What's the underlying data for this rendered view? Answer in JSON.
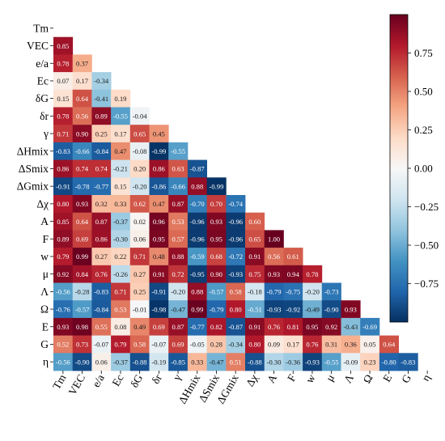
{
  "chart_data": {
    "type": "heatmap",
    "title": "",
    "variables": [
      "Tm",
      "VEC",
      "e/a",
      "Ec",
      "δG",
      "δr",
      "γ",
      "ΔHmix",
      "ΔSmix",
      "ΔGmix",
      "Δχ",
      "A",
      "F",
      "w",
      "μ",
      "Λ",
      "Ω",
      "E",
      "G",
      "η"
    ],
    "matrix": [
      [],
      [
        0.85
      ],
      [
        0.78,
        0.37
      ],
      [
        0.07,
        0.17,
        -0.34
      ],
      [
        0.15,
        0.64,
        -0.41,
        0.19
      ],
      [
        0.78,
        0.56,
        0.89,
        -0.55,
        -0.04
      ],
      [
        0.71,
        0.9,
        0.25,
        0.17,
        0.65,
        0.45
      ],
      [
        -0.83,
        -0.66,
        -0.84,
        0.47,
        -0.08,
        -0.99,
        -0.55
      ],
      [
        0.86,
        0.74,
        0.74,
        -0.21,
        0.2,
        0.86,
        0.63,
        -0.87
      ],
      [
        -0.91,
        -0.78,
        -0.77,
        0.15,
        -0.2,
        -0.86,
        -0.66,
        0.88,
        -0.99
      ],
      [
        0.8,
        0.93,
        0.32,
        0.33,
        0.62,
        0.47,
        0.87,
        -0.7,
        0.7,
        -0.74
      ],
      [
        0.85,
        0.64,
        0.87,
        -0.37,
        0.02,
        0.96,
        0.53,
        -0.96,
        0.93,
        -0.96,
        0.6
      ],
      [
        0.89,
        0.69,
        0.86,
        -0.3,
        0.06,
        0.95,
        0.57,
        -0.96,
        0.95,
        -0.96,
        0.65,
        1.0
      ],
      [
        0.79,
        0.99,
        0.27,
        0.22,
        0.71,
        0.48,
        0.88,
        -0.59,
        0.68,
        -0.72,
        0.91,
        0.56,
        0.61
      ],
      [
        0.92,
        0.84,
        0.76,
        -0.26,
        0.27,
        0.91,
        0.72,
        -0.95,
        0.9,
        -0.93,
        0.75,
        0.93,
        0.94,
        0.78
      ],
      [
        -0.56,
        -0.28,
        -0.83,
        0.71,
        0.25,
        -0.91,
        -0.2,
        0.88,
        -0.57,
        0.58,
        -0.18,
        -0.79,
        -0.75,
        -0.2,
        -0.73
      ],
      [
        -0.76,
        -0.57,
        -0.84,
        0.53,
        -0.01,
        -0.98,
        -0.47,
        0.99,
        -0.79,
        0.8,
        -0.51,
        -0.93,
        -0.92,
        -0.49,
        -0.9,
        0.93
      ],
      [
        0.93,
        0.98,
        0.55,
        0.08,
        0.49,
        0.69,
        0.87,
        -0.77,
        0.82,
        -0.87,
        0.91,
        0.76,
        0.81,
        0.95,
        0.92,
        -0.43,
        -0.69
      ],
      [
        0.52,
        0.73,
        -0.07,
        0.79,
        0.58,
        -0.07,
        0.69,
        -0.05,
        0.28,
        -0.34,
        0.8,
        0.09,
        0.17,
        0.76,
        0.31,
        0.36,
        0.05,
        0.64
      ],
      [
        -0.56,
        -0.9,
        0.06,
        -0.37,
        -0.88,
        -0.19,
        -0.85,
        0.33,
        -0.47,
        0.51,
        -0.88,
        -0.3,
        -0.36,
        -0.93,
        -0.55,
        -0.09,
        0.23,
        -0.8,
        -0.83
      ]
    ],
    "colorbar": {
      "range": [
        -1.0,
        1.0
      ],
      "ticks": [
        0.75,
        0.5,
        0.25,
        0.0,
        -0.25,
        -0.5,
        -0.75
      ],
      "tick_labels": [
        "0.75",
        "0.50",
        "0.25",
        "0.00",
        "−0.25",
        "−0.50",
        "−0.75"
      ],
      "colormap": "RdBu_r",
      "colors": {
        "negative_extreme": "#053061",
        "negative": "#2166ac",
        "negative_mid": "#4393c3",
        "negative_light": "#92c5de",
        "negative_pale": "#d1e5f0",
        "neutral": "#f7f7f7",
        "positive_pale": "#fddbc7",
        "positive_light": "#f4a582",
        "positive_mid": "#d6604d",
        "positive": "#b2182b",
        "positive_extreme": "#67001f"
      }
    },
    "mask": "upper-triangle-including-diagonal"
  }
}
